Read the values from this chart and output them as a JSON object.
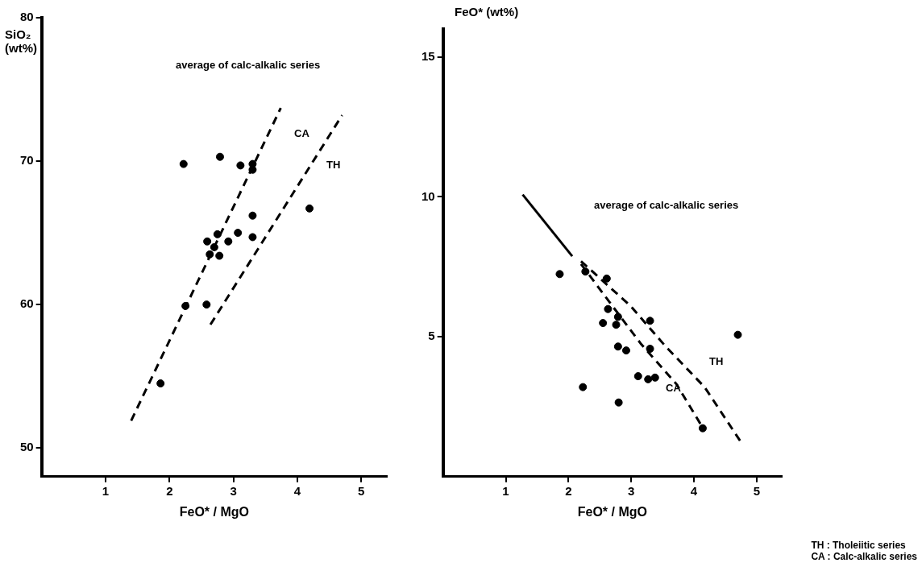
{
  "chart_data": [
    {
      "type": "scatter",
      "xlabel": "FeO* / MgO",
      "ylabel": "SiO₂ (wt%)",
      "xlim": [
        0,
        5.4
      ],
      "ylim": [
        48,
        80
      ],
      "xticks": [
        1,
        2,
        3,
        4,
        5
      ],
      "yticks": [
        50,
        60,
        70,
        80
      ],
      "grid": false,
      "legend": false,
      "marker": "circle",
      "series": [
        {
          "color": "#000000",
          "x": [
            2.22,
            2.79,
            3.11,
            3.3,
            3.3,
            4.19,
            3.3,
            2.75,
            2.59,
            2.92,
            3.07,
            3.3,
            2.7,
            2.63,
            2.78,
            2.25,
            2.58,
            1.86
          ],
          "values": [
            69.8,
            70.3,
            69.7,
            69.8,
            69.4,
            66.7,
            66.2,
            64.9,
            64.4,
            64.4,
            65.0,
            64.7,
            64.0,
            63.5,
            63.4,
            59.9,
            60.0,
            54.5
          ]
        },
        {
          "type": "line",
          "color": "#000000",
          "marker": "none",
          "line_style": "dashed",
          "x": [
            1.4,
            3.74
          ],
          "values": [
            51.9,
            73.7
          ]
        },
        {
          "type": "line",
          "color": "#000000",
          "marker": "none",
          "line_style": "dashed",
          "x": [
            2.64,
            4.7
          ],
          "values": [
            58.6,
            73.2
          ]
        }
      ],
      "annotations": [
        "average of calc-alkalic series",
        "CA",
        "TH"
      ]
    },
    {
      "type": "scatter",
      "xlabel": "FeO* / MgO",
      "ylabel": "FeO* (wt%)",
      "xlim": [
        0,
        5.4
      ],
      "ylim": [
        0,
        16
      ],
      "xticks": [
        1,
        2,
        3,
        4,
        5
      ],
      "yticks": [
        5,
        10,
        15
      ],
      "grid": false,
      "legend": false,
      "marker": "circle",
      "series": [
        {
          "color": "#000000",
          "x": [
            1.86,
            2.27,
            2.61,
            2.63,
            2.79,
            2.55,
            2.76,
            3.3,
            2.79,
            2.92,
            3.3,
            3.11,
            3.27,
            3.38,
            4.7,
            2.23,
            2.8,
            4.14
          ],
          "values": [
            7.24,
            7.33,
            7.08,
            5.99,
            5.71,
            5.49,
            5.43,
            5.57,
            4.65,
            4.51,
            4.57,
            3.59,
            3.48,
            3.54,
            5.07,
            3.2,
            2.65,
            1.73
          ]
        },
        {
          "type": "line",
          "color": "#000000",
          "marker": "none",
          "line_style": "solid",
          "x": [
            1.27,
            2.06
          ],
          "values": [
            10.08,
            7.88
          ]
        },
        {
          "type": "line",
          "color": "#000000",
          "marker": "none",
          "line_style": "dashed",
          "x": [
            2.2,
            2.7,
            3.15,
            3.72,
            4.14
          ],
          "values": [
            7.6,
            6.1,
            4.76,
            3.31,
            1.75
          ]
        },
        {
          "type": "line",
          "color": "#000000",
          "marker": "none",
          "line_style": "dashed",
          "x": [
            2.2,
            2.99,
            3.55,
            4.17,
            4.76
          ],
          "values": [
            7.7,
            6.1,
            4.65,
            3.2,
            1.2
          ]
        }
      ],
      "annotations": [
        "average of calc-alkalic series",
        "CA",
        "TH",
        "TH : Tholeiitic series",
        "CA : Calc-alkalic series"
      ]
    }
  ]
}
